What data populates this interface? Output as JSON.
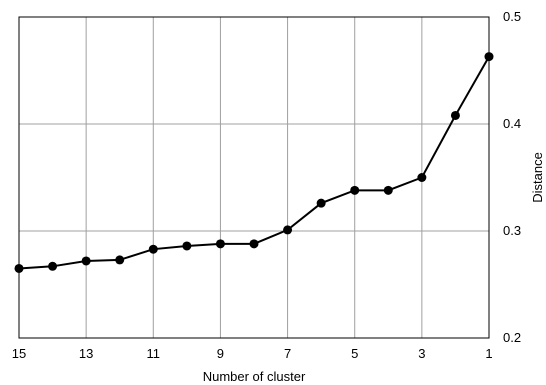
{
  "chart_data": {
    "type": "line",
    "title": "",
    "xlabel": "Number of cluster",
    "ylabel": "Distance",
    "x_reversed": true,
    "xlim": [
      15,
      1
    ],
    "ylim": [
      0.2,
      0.5
    ],
    "grid": true,
    "y_axis_position": "right",
    "x_ticks": [
      15,
      13,
      11,
      9,
      7,
      5,
      3,
      1
    ],
    "y_ticks": [
      0.2,
      0.3,
      0.4,
      0.5
    ],
    "y_tick_labels": [
      "0.2",
      "0.3",
      "0.4",
      "0.5"
    ],
    "x_grid": [
      15,
      13,
      11,
      9,
      7,
      5,
      3,
      1
    ],
    "y_grid": [
      0.3,
      0.4
    ],
    "series": [
      {
        "x": [
          15,
          14,
          13,
          12,
          11,
          10,
          9,
          8,
          7,
          6,
          5,
          4,
          3,
          2,
          1
        ],
        "y": [
          0.265,
          0.267,
          0.272,
          0.273,
          0.283,
          0.286,
          0.288,
          0.288,
          0.301,
          0.326,
          0.338,
          0.338,
          0.35,
          0.408,
          0.463
        ]
      }
    ],
    "line_color": "#000000",
    "marker": "filled-circle"
  }
}
